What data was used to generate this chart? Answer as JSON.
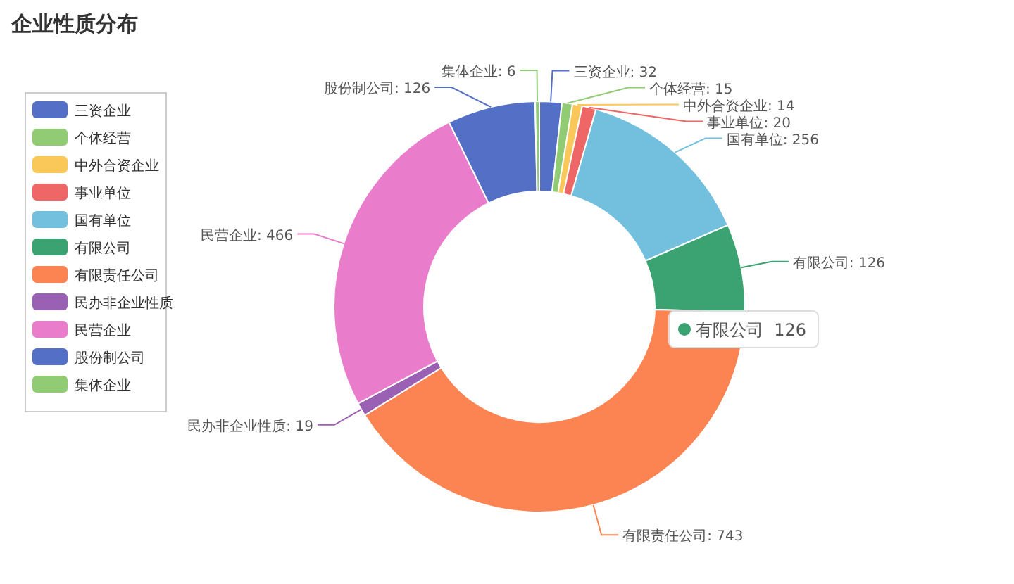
{
  "chart_data": {
    "type": "donut",
    "title": "企业性质分布",
    "categories": [
      "三资企业",
      "个体经营",
      "中外合资企业",
      "事业单位",
      "国有单位",
      "有限公司",
      "有限责任公司",
      "民办非企业性质",
      "民营企业",
      "股份制公司",
      "集体企业"
    ],
    "values": [
      32,
      15,
      14,
      20,
      256,
      126,
      743,
      19,
      466,
      126,
      6
    ],
    "colors": [
      "#5470c6",
      "#91cc75",
      "#fac858",
      "#ee6666",
      "#73c0de",
      "#3ba272",
      "#fc8452",
      "#9a60b4",
      "#ea7ccc",
      "#5470c6",
      "#91cc75"
    ],
    "value_labels": [
      "三资企业: 32",
      "个体经营: 15",
      "中外合资企业: 14",
      "事业单位: 20",
      "国有单位: 256",
      "有限公司: 126",
      "有限责任公司: 743",
      "民办非企业性质: 19",
      "民营企业: 466",
      "股份制公司: 126",
      "集体企业: 6"
    ],
    "legend": "left",
    "annotations": [
      "有限公司  126"
    ]
  }
}
